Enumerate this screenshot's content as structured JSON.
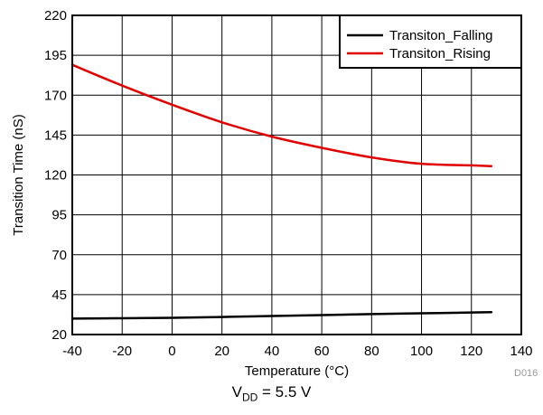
{
  "chart_data": {
    "type": "line",
    "xlabel": "Temperature (°C)",
    "ylabel": "Transition Time (nS)",
    "xlim": [
      -40,
      140
    ],
    "ylim": [
      20,
      220
    ],
    "xticks": [
      "-40",
      "-20",
      "0",
      "20",
      "40",
      "60",
      "80",
      "100",
      "120",
      "140"
    ],
    "yticks": [
      "20",
      "45",
      "70",
      "95",
      "120",
      "145",
      "170",
      "195",
      "220"
    ],
    "grid": true,
    "legend_position": "top-right",
    "series": [
      {
        "name": "Transiton_Falling",
        "color": "#000000",
        "x": [
          -40,
          -20,
          0,
          20,
          40,
          60,
          80,
          100,
          120,
          128
        ],
        "y": [
          30,
          30.2,
          30.5,
          31,
          31.6,
          32.2,
          32.8,
          33.3,
          33.8,
          34
        ]
      },
      {
        "name": "Transiton_Rising",
        "color": "#e00000",
        "x": [
          -40,
          -20,
          0,
          20,
          40,
          60,
          80,
          100,
          120,
          128
        ],
        "y": [
          189,
          176,
          164,
          153,
          144,
          137,
          131,
          127,
          126,
          125.5
        ]
      }
    ]
  },
  "caption": {
    "prefix": "V",
    "subscript": "DD",
    "suffix": " = 5.5 V"
  },
  "figure_id": "D016"
}
